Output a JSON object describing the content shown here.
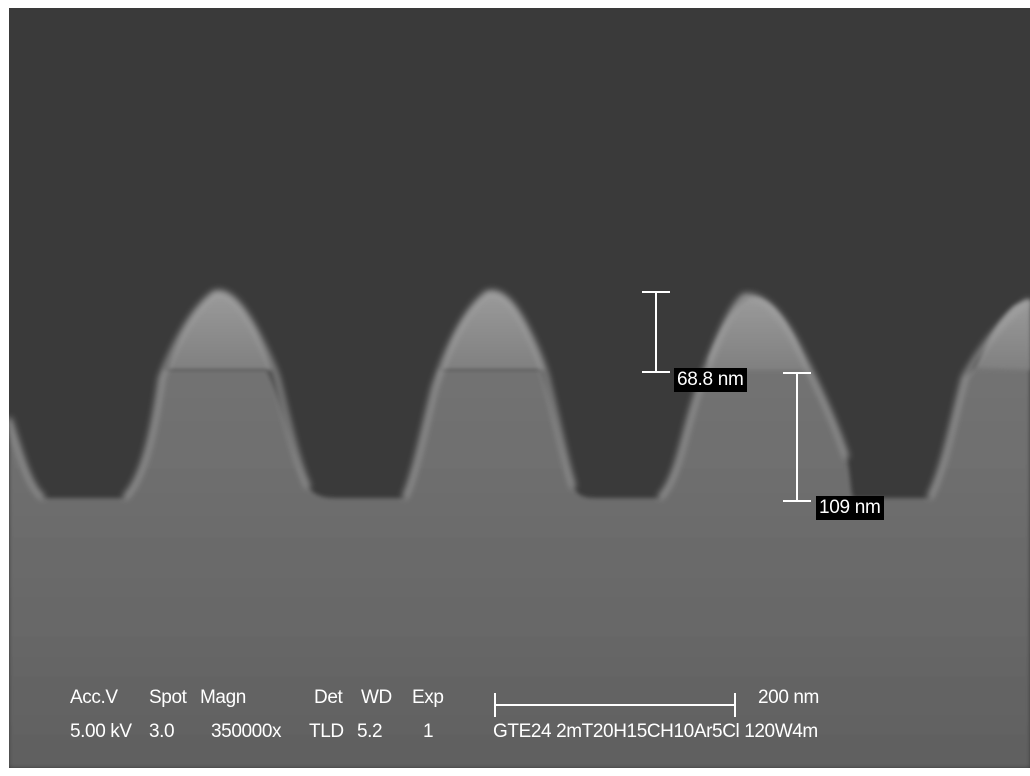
{
  "measurements": {
    "upper": "68.8 nm",
    "lower": "109 nm"
  },
  "databar": {
    "headers": {
      "acc_v": "Acc.V",
      "spot": "Spot",
      "magn": "Magn",
      "det": "Det",
      "wd": "WD",
      "exp": "Exp"
    },
    "values": {
      "acc_v": "5.00 kV",
      "spot": "3.0",
      "magn": "350000x",
      "det": "TLD",
      "wd": "5.2",
      "exp": "1"
    },
    "scale_bar_label": "200 nm",
    "sample_id": "GTE24 2mT20H15CH10Ar5Cl 120W4m"
  },
  "colors": {
    "background_vacuum": "#3b3b3b",
    "substrate": "#6f6f6f",
    "ridge_body": "#7a7a7a",
    "ridge_cap": "#858585",
    "edge_highlight": "#a8a8a8",
    "annotation": "#ffffff"
  }
}
